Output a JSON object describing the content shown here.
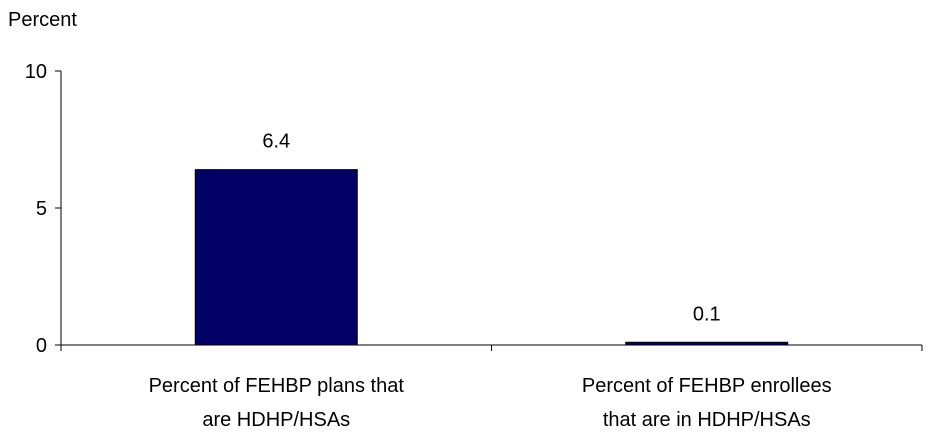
{
  "chart_data": {
    "type": "bar",
    "title": "",
    "ylabel": "Percent",
    "xlabel": "",
    "categories": [
      "Percent of FEHBP plans that are HDHP/HSAs",
      "Percent of FEHBP enrollees that are in HDHP/HSAs"
    ],
    "category_lines": [
      [
        "Percent of FEHBP plans that",
        "are HDHP/HSAs"
      ],
      [
        "Percent of FEHBP enrollees",
        "that are in HDHP/HSAs"
      ]
    ],
    "values": [
      6.4,
      0.1
    ],
    "data_labels": [
      "6.4",
      "0.1"
    ],
    "ylim": [
      0,
      10
    ],
    "yticks": [
      0,
      5,
      10
    ],
    "ytick_labels": [
      "0",
      "5",
      "10"
    ],
    "grid": false,
    "legend": "none",
    "bar_color": "#000066"
  }
}
